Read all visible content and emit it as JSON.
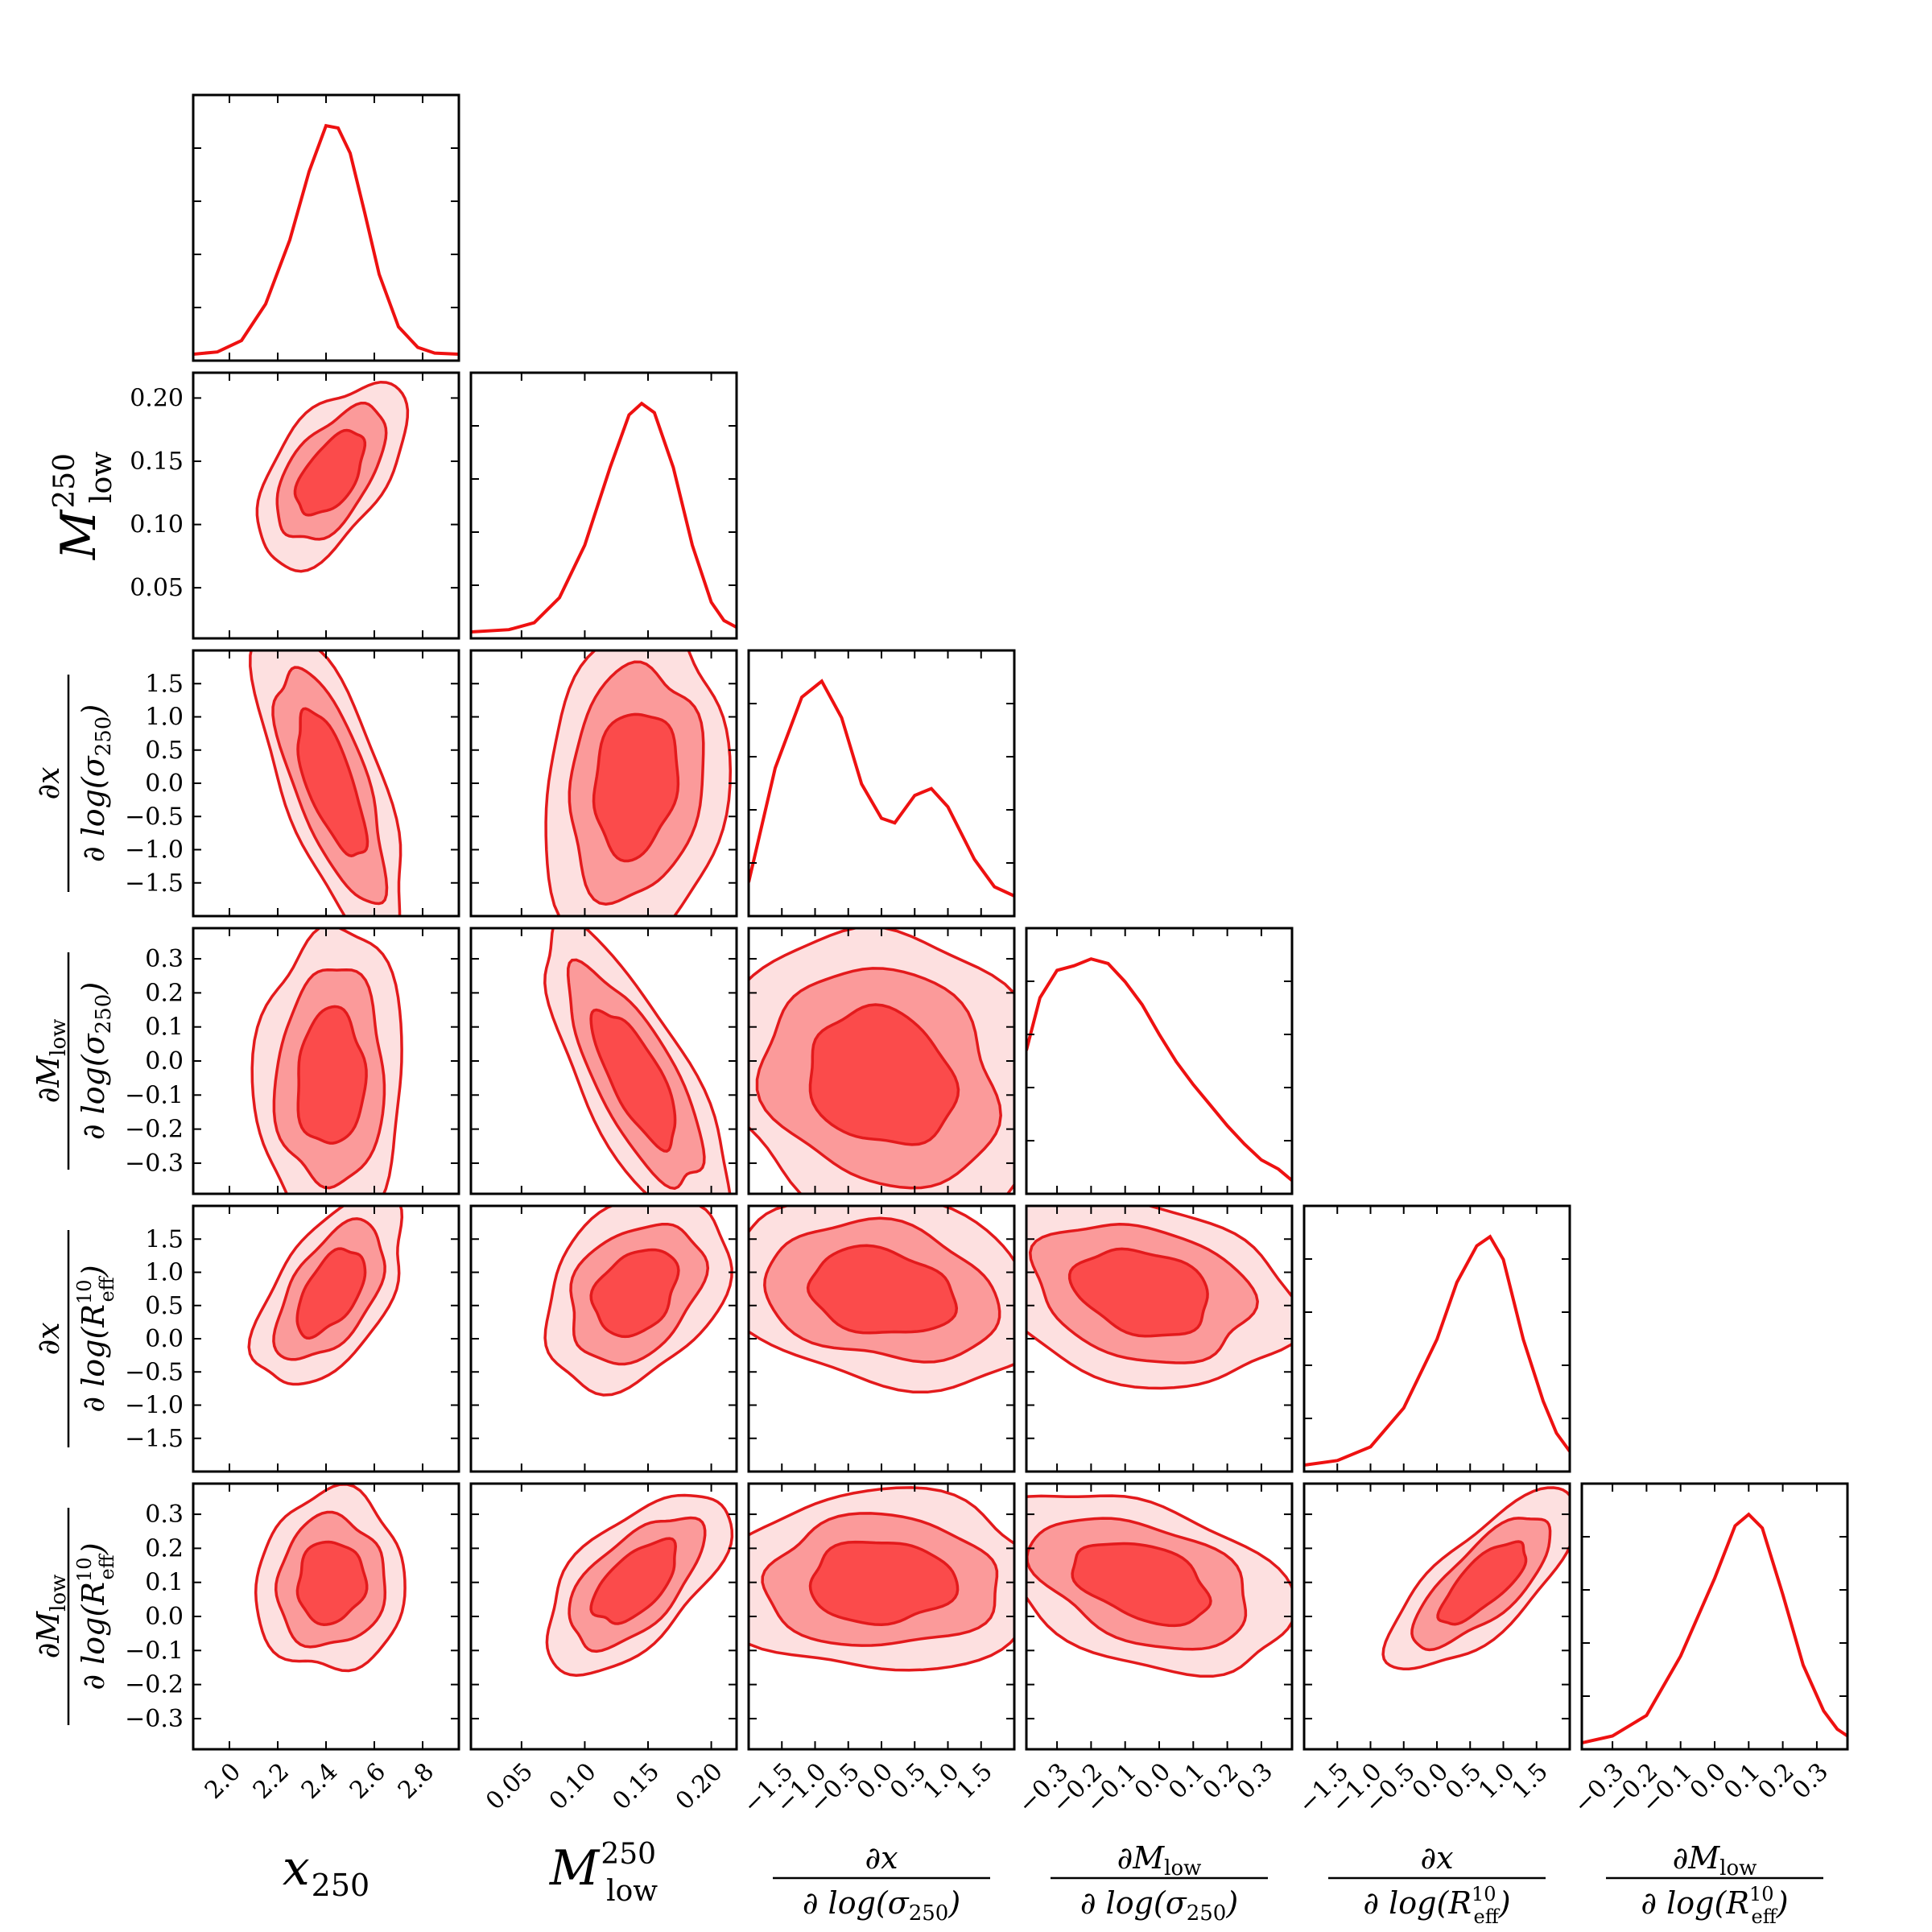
{
  "chart_data": {
    "type": "corner",
    "title": "",
    "colors": {
      "line": "#ee1111",
      "fill_outer": "#fde0e0",
      "fill_mid": "#fb9a9a",
      "fill_inner": "#fb4b4b",
      "contour_stroke": "#e31a1c"
    },
    "parameters": [
      {
        "id": "x250",
        "label_main": "x",
        "label_sub": "250",
        "label_kind": "simple",
        "range": [
          1.85,
          2.95
        ],
        "ticks": [
          2.0,
          2.2,
          2.4,
          2.6,
          2.8
        ],
        "tick_labels": [
          "2.0",
          "2.2",
          "2.4",
          "2.6",
          "2.8"
        ],
        "mean": 2.42,
        "sd": 0.14,
        "marginal": [
          [
            1.85,
            0.0
          ],
          [
            1.95,
            0.01
          ],
          [
            2.05,
            0.06
          ],
          [
            2.15,
            0.22
          ],
          [
            2.25,
            0.5
          ],
          [
            2.33,
            0.8
          ],
          [
            2.4,
            1.0
          ],
          [
            2.45,
            0.99
          ],
          [
            2.5,
            0.88
          ],
          [
            2.56,
            0.62
          ],
          [
            2.62,
            0.35
          ],
          [
            2.7,
            0.12
          ],
          [
            2.78,
            0.03
          ],
          [
            2.85,
            0.005
          ],
          [
            2.95,
            0.0
          ]
        ]
      },
      {
        "id": "Mlow250",
        "label_main": "M",
        "label_sub": "low",
        "label_sup": "250",
        "label_kind": "simple",
        "range": [
          0.01,
          0.22
        ],
        "ticks": [
          0.05,
          0.1,
          0.15,
          0.2
        ],
        "tick_labels": [
          "0.05",
          "0.10",
          "0.15",
          "0.20"
        ],
        "mean": 0.14,
        "sd": 0.033,
        "marginal": [
          [
            0.01,
            0.0
          ],
          [
            0.04,
            0.01
          ],
          [
            0.06,
            0.04
          ],
          [
            0.08,
            0.15
          ],
          [
            0.1,
            0.38
          ],
          [
            0.12,
            0.72
          ],
          [
            0.135,
            0.95
          ],
          [
            0.145,
            1.0
          ],
          [
            0.155,
            0.96
          ],
          [
            0.17,
            0.72
          ],
          [
            0.185,
            0.38
          ],
          [
            0.2,
            0.13
          ],
          [
            0.21,
            0.05
          ],
          [
            0.22,
            0.02
          ]
        ]
      },
      {
        "id": "dx_dsigma",
        "label_num": "∂x",
        "label_den_main": "∂ log(σ",
        "label_den_sub": "250",
        "label_den_sup": "",
        "label_den_end": ")",
        "label_kind": "fraction",
        "range": [
          -2.0,
          2.0
        ],
        "ticks": [
          -1.5,
          -1.0,
          -0.5,
          0.0,
          0.5,
          1.0,
          1.5
        ],
        "tick_labels": [
          "−1.5",
          "−1.0",
          "−0.5",
          "0.0",
          "0.5",
          "1.0",
          "1.5"
        ],
        "mean": 0.0,
        "sd": 1.1,
        "marginal": [
          [
            -2.0,
            0.12
          ],
          [
            -1.6,
            0.62
          ],
          [
            -1.2,
            0.93
          ],
          [
            -0.9,
            1.0
          ],
          [
            -0.6,
            0.84
          ],
          [
            -0.3,
            0.55
          ],
          [
            0.0,
            0.4
          ],
          [
            0.2,
            0.38
          ],
          [
            0.5,
            0.5
          ],
          [
            0.75,
            0.53
          ],
          [
            1.0,
            0.45
          ],
          [
            1.4,
            0.22
          ],
          [
            1.7,
            0.1
          ],
          [
            2.0,
            0.06
          ]
        ]
      },
      {
        "id": "dM_dsigma",
        "label_num": "∂M",
        "label_num_sub": "low",
        "label_den_main": "∂ log(σ",
        "label_den_sub": "250",
        "label_den_sup": "",
        "label_den_end": ")",
        "label_kind": "fraction",
        "range": [
          -0.39,
          0.39
        ],
        "ticks": [
          -0.3,
          -0.2,
          -0.1,
          0.0,
          0.1,
          0.2,
          0.3
        ],
        "tick_labels": [
          "−0.3",
          "−0.2",
          "−0.1",
          "0.0",
          "0.1",
          "0.2",
          "0.3"
        ],
        "mean": -0.05,
        "sd": 0.2,
        "marginal": [
          [
            -0.39,
            0.6
          ],
          [
            -0.35,
            0.83
          ],
          [
            -0.3,
            0.95
          ],
          [
            -0.25,
            0.97
          ],
          [
            -0.2,
            1.0
          ],
          [
            -0.15,
            0.98
          ],
          [
            -0.1,
            0.9
          ],
          [
            -0.05,
            0.8
          ],
          [
            0.0,
            0.67
          ],
          [
            0.05,
            0.55
          ],
          [
            0.1,
            0.45
          ],
          [
            0.15,
            0.36
          ],
          [
            0.2,
            0.27
          ],
          [
            0.25,
            0.19
          ],
          [
            0.3,
            0.12
          ],
          [
            0.35,
            0.08
          ],
          [
            0.39,
            0.03
          ]
        ]
      },
      {
        "id": "dx_dReff",
        "label_num": "∂x",
        "label_den_main": "∂ log(R",
        "label_den_sub": "eff",
        "label_den_sup": "10",
        "label_den_end": ")",
        "label_kind": "fraction",
        "range": [
          -2.0,
          2.0
        ],
        "ticks": [
          -1.5,
          -1.0,
          -0.5,
          0.0,
          0.5,
          1.0,
          1.5
        ],
        "tick_labels": [
          "−1.5",
          "−1.0",
          "−0.5",
          "0.0",
          "0.5",
          "1.0",
          "1.5"
        ],
        "mean": 0.7,
        "sd": 0.65,
        "marginal": [
          [
            -2.0,
            0.0
          ],
          [
            -1.5,
            0.02
          ],
          [
            -1.0,
            0.08
          ],
          [
            -0.5,
            0.25
          ],
          [
            0.0,
            0.55
          ],
          [
            0.3,
            0.8
          ],
          [
            0.6,
            0.96
          ],
          [
            0.8,
            1.0
          ],
          [
            1.0,
            0.9
          ],
          [
            1.3,
            0.55
          ],
          [
            1.6,
            0.28
          ],
          [
            1.8,
            0.14
          ],
          [
            2.0,
            0.06
          ]
        ]
      },
      {
        "id": "dM_dReff",
        "label_num": "∂M",
        "label_num_sub": "low",
        "label_den_main": "∂ log(R",
        "label_den_sub": "eff",
        "label_den_sup": "10",
        "label_den_end": ")",
        "label_kind": "fraction",
        "range": [
          -0.39,
          0.39
        ],
        "ticks": [
          -0.3,
          -0.2,
          -0.1,
          0.0,
          0.1,
          0.2,
          0.3
        ],
        "tick_labels": [
          "−0.3",
          "−0.2",
          "−0.1",
          "0.0",
          "0.1",
          "0.2",
          "0.3"
        ],
        "mean": 0.1,
        "sd": 0.12,
        "marginal": [
          [
            -0.39,
            0.0
          ],
          [
            -0.3,
            0.03
          ],
          [
            -0.2,
            0.12
          ],
          [
            -0.1,
            0.38
          ],
          [
            0.0,
            0.72
          ],
          [
            0.06,
            0.95
          ],
          [
            0.1,
            1.0
          ],
          [
            0.14,
            0.94
          ],
          [
            0.2,
            0.65
          ],
          [
            0.26,
            0.34
          ],
          [
            0.32,
            0.14
          ],
          [
            0.36,
            0.06
          ],
          [
            0.39,
            0.03
          ]
        ]
      }
    ],
    "correlations": [
      [
        1.0,
        0.55,
        -0.7,
        0.05,
        0.55,
        0.05
      ],
      [
        0.55,
        1.0,
        0.15,
        -0.75,
        0.3,
        0.6
      ],
      [
        -0.7,
        0.15,
        1.0,
        -0.15,
        -0.2,
        0.0
      ],
      [
        0.05,
        -0.75,
        -0.15,
        1.0,
        -0.25,
        -0.4
      ],
      [
        0.55,
        0.3,
        -0.2,
        -0.25,
        1.0,
        0.75
      ],
      [
        0.05,
        0.6,
        0.0,
        -0.4,
        0.75,
        1.0
      ]
    ],
    "contour_levels_sigma": [
      1.0,
      1.6,
      2.2
    ]
  }
}
